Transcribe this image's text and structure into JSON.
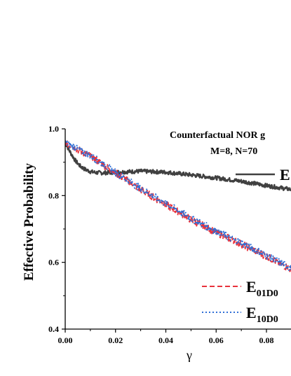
{
  "chart_data": {
    "type": "line",
    "title": "Counterfactual NOR g",
    "subtitle": "M=8, N=70",
    "xlabel": "γ",
    "ylabel": "Effective Probability",
    "xlim": [
      0.0,
      0.093
    ],
    "ylim": [
      0.4,
      1.0
    ],
    "x_ticks": [
      "0.00",
      "0.02",
      "0.04",
      "0.06",
      "0.08"
    ],
    "y_ticks": [
      "0.4",
      "0.6",
      "0.8",
      "1.0"
    ],
    "grid": false,
    "legend_position": "right",
    "series": [
      {
        "name": "E",
        "color": "#404040",
        "style": "solid",
        "x": [
          0.0,
          0.002,
          0.004,
          0.006,
          0.008,
          0.01,
          0.012,
          0.015,
          0.02,
          0.03,
          0.04,
          0.05,
          0.06,
          0.07,
          0.08,
          0.09,
          0.093
        ],
        "y": [
          0.958,
          0.93,
          0.905,
          0.888,
          0.878,
          0.872,
          0.869,
          0.868,
          0.87,
          0.873,
          0.87,
          0.862,
          0.853,
          0.843,
          0.83,
          0.818,
          0.815
        ]
      },
      {
        "name": "E01D0",
        "name_main": "E",
        "name_sub": "01D0",
        "color": "#e8323c",
        "style": "dashed",
        "x": [
          0.0,
          0.01,
          0.02,
          0.03,
          0.04,
          0.05,
          0.06,
          0.07,
          0.08,
          0.09,
          0.093
        ],
        "y": [
          0.958,
          0.918,
          0.868,
          0.818,
          0.773,
          0.728,
          0.69,
          0.655,
          0.618,
          0.578,
          0.568
        ]
      },
      {
        "name": "E10D0",
        "name_main": "E",
        "name_sub": "10D0",
        "color": "#2f6fd6",
        "style": "dotted",
        "x": [
          0.0,
          0.01,
          0.02,
          0.03,
          0.04,
          0.05,
          0.06,
          0.07,
          0.08,
          0.09,
          0.093
        ],
        "y": [
          0.96,
          0.92,
          0.87,
          0.821,
          0.776,
          0.732,
          0.693,
          0.658,
          0.621,
          0.581,
          0.571
        ]
      }
    ]
  }
}
